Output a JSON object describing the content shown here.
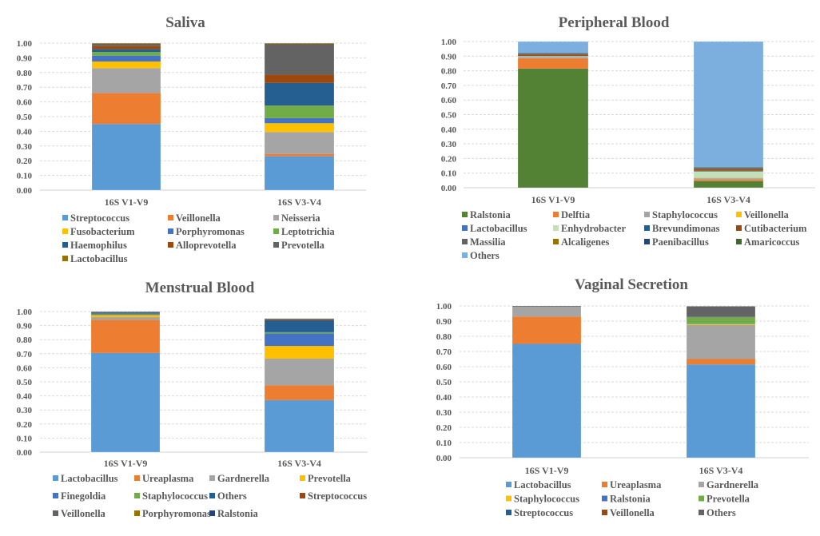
{
  "chart_data": [
    {
      "type": "bar",
      "stacked": true,
      "title": "Saliva",
      "categories": [
        "16S V1-V9",
        "16S V3-V4"
      ],
      "ylim": [
        0,
        1
      ],
      "yticks": [
        "0.00",
        "0.10",
        "0.20",
        "0.30",
        "0.40",
        "0.50",
        "0.60",
        "0.70",
        "0.80",
        "0.90",
        "1.00"
      ],
      "grid": true,
      "legend": "bottom",
      "series": [
        {
          "name": "Streptococcus",
          "color": "#5B9BD5",
          "values": [
            0.45,
            0.23
          ]
        },
        {
          "name": "Veillonella",
          "color": "#ED7D31",
          "values": [
            0.21,
            0.015
          ]
        },
        {
          "name": "Neisseria",
          "color": "#A5A5A5",
          "values": [
            0.17,
            0.15
          ]
        },
        {
          "name": "Fusobacterium",
          "color": "#FFC000",
          "values": [
            0.045,
            0.06
          ]
        },
        {
          "name": "Porphyromonas",
          "color": "#4472C4",
          "values": [
            0.04,
            0.035
          ]
        },
        {
          "name": "Leptotrichia",
          "color": "#70AD47",
          "values": [
            0.025,
            0.085
          ]
        },
        {
          "name": "Haemophilus",
          "color": "#255E91",
          "values": [
            0.02,
            0.155
          ]
        },
        {
          "name": "Alloprevotella",
          "color": "#9E480E",
          "values": [
            0.02,
            0.055
          ]
        },
        {
          "name": "Prevotella",
          "color": "#636363",
          "values": [
            0.015,
            0.21
          ]
        },
        {
          "name": "Lactobacillus",
          "color": "#997300",
          "values": [
            0.005,
            0.005
          ]
        }
      ]
    },
    {
      "type": "bar",
      "stacked": true,
      "title": "Peripheral Blood",
      "categories": [
        "16S V1-V9",
        "16S V3-V4"
      ],
      "ylim": [
        0,
        1
      ],
      "yticks": [
        "0.00",
        "0.10",
        "0.20",
        "0.30",
        "0.40",
        "0.50",
        "0.60",
        "0.70",
        "0.80",
        "0.90",
        "1.00"
      ],
      "grid": true,
      "legend": "bottom",
      "series": [
        {
          "name": "Ralstonia",
          "color": "#548235",
          "values": [
            0.815,
            0.045
          ]
        },
        {
          "name": "Delftia",
          "color": "#ED7D31",
          "values": [
            0.07,
            0.01
          ]
        },
        {
          "name": "Staphylococcus",
          "color": "#A5A5A5",
          "values": [
            0.005,
            0.008
          ]
        },
        {
          "name": "Veillonella",
          "color": "#FFC000",
          "values": [
            0.002,
            0.002
          ]
        },
        {
          "name": "Lactobacillus",
          "color": "#4472C4",
          "values": [
            0.003,
            0.002
          ]
        },
        {
          "name": "Enhydrobacter",
          "color": "#C5E0B4",
          "values": [
            0.005,
            0.045
          ]
        },
        {
          "name": "Brevundimonas",
          "color": "#255E91",
          "values": [
            0.002,
            0.004
          ]
        },
        {
          "name": "Cutibacterium",
          "color": "#9E480E",
          "values": [
            0.01,
            0.01
          ]
        },
        {
          "name": "Massilia",
          "color": "#636363",
          "values": [
            0.003,
            0.004
          ]
        },
        {
          "name": "Alcaligenes",
          "color": "#997300",
          "values": [
            0.001,
            0.003
          ]
        },
        {
          "name": "Paenibacillus",
          "color": "#264478",
          "values": [
            0.004,
            0.004
          ]
        },
        {
          "name": "Amaricoccus",
          "color": "#43682B",
          "values": [
            0.001,
            0.003
          ]
        },
        {
          "name": "Others",
          "color": "#7CAFDD",
          "values": [
            0.079,
            0.86
          ]
        }
      ]
    },
    {
      "type": "bar",
      "stacked": true,
      "title": "Menstrual Blood",
      "categories": [
        "16S V1-V9",
        "16S V3-V4"
      ],
      "ylim": [
        0,
        1
      ],
      "yticks": [
        "0.00",
        "0.10",
        "0.20",
        "0.30",
        "0.40",
        "0.50",
        "0.60",
        "0.70",
        "0.80",
        "0.90",
        "1.00"
      ],
      "grid": true,
      "legend": "bottom",
      "series": [
        {
          "name": "Lactobacillus",
          "color": "#5B9BD5",
          "values": [
            0.705,
            0.37
          ]
        },
        {
          "name": "Ureaplasma",
          "color": "#ED7D31",
          "values": [
            0.235,
            0.105
          ]
        },
        {
          "name": "Gardnerella",
          "color": "#A5A5A5",
          "values": [
            0.02,
            0.19
          ]
        },
        {
          "name": "Prevotella",
          "color": "#FFC000",
          "values": [
            0.015,
            0.09
          ]
        },
        {
          "name": "Finegoldia",
          "color": "#4472C4",
          "values": [
            0.005,
            0.09
          ]
        },
        {
          "name": "Staphylococcus",
          "color": "#70AD47",
          "values": [
            0.005,
            0.008
          ]
        },
        {
          "name": "Others",
          "color": "#255E91",
          "values": [
            0.008,
            0.085
          ]
        },
        {
          "name": "Streptococcus",
          "color": "#9E480E",
          "values": [
            0.002,
            0.005
          ]
        },
        {
          "name": "Veillonella",
          "color": "#636363",
          "values": [
            0.002,
            0.003
          ]
        },
        {
          "name": "Porphyromonas",
          "color": "#997300",
          "values": [
            0.001,
            0.002
          ]
        },
        {
          "name": "Ralstonia",
          "color": "#264478",
          "values": [
            0.002,
            0.002
          ]
        }
      ]
    },
    {
      "type": "bar",
      "stacked": true,
      "title": "Vaginal Secretion",
      "categories": [
        "16S V1-V9",
        "16S V3-V4"
      ],
      "ylim": [
        0,
        1
      ],
      "yticks": [
        "0.00",
        "0.10",
        "0.20",
        "0.30",
        "0.40",
        "0.50",
        "0.60",
        "0.70",
        "0.80",
        "0.90",
        "1.00"
      ],
      "grid": true,
      "legend": "bottom",
      "series": [
        {
          "name": "Lactobacillus",
          "color": "#5B9BD5",
          "values": [
            0.75,
            0.615
          ]
        },
        {
          "name": "Ureaplasma",
          "color": "#ED7D31",
          "values": [
            0.18,
            0.035
          ]
        },
        {
          "name": "Gardnerella",
          "color": "#A5A5A5",
          "values": [
            0.065,
            0.225
          ]
        },
        {
          "name": "Staphylococcus",
          "color": "#FFC000",
          "values": [
            0.0,
            0.005
          ]
        },
        {
          "name": "Ralstonia",
          "color": "#4472C4",
          "values": [
            0.0,
            0.002
          ]
        },
        {
          "name": "Prevotella",
          "color": "#70AD47",
          "values": [
            0.0,
            0.043
          ]
        },
        {
          "name": "Streptococcus",
          "color": "#255E91",
          "values": [
            0.0,
            0.002
          ]
        },
        {
          "name": "Veillonella",
          "color": "#9E480E",
          "values": [
            0.0,
            0.001
          ]
        },
        {
          "name": "Others",
          "color": "#636363",
          "values": [
            0.005,
            0.07
          ]
        }
      ]
    }
  ]
}
